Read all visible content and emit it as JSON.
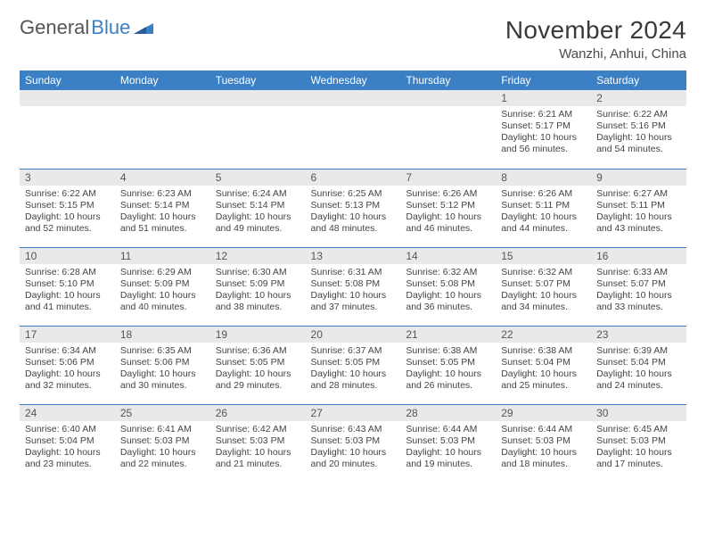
{
  "logo": {
    "text_gray": "General",
    "text_blue": "Blue"
  },
  "title": "November 2024",
  "location": "Wanzhi, Anhui, China",
  "colors": {
    "header_bg": "#3b7fc4",
    "header_text": "#ffffff",
    "daynum_bg": "#e9e9e9",
    "row_divider": "#3b7fc4",
    "body_text": "#444444"
  },
  "day_labels": [
    "Sunday",
    "Monday",
    "Tuesday",
    "Wednesday",
    "Thursday",
    "Friday",
    "Saturday"
  ],
  "weeks": [
    [
      {
        "n": "",
        "sr": "",
        "ss": "",
        "dl": ""
      },
      {
        "n": "",
        "sr": "",
        "ss": "",
        "dl": ""
      },
      {
        "n": "",
        "sr": "",
        "ss": "",
        "dl": ""
      },
      {
        "n": "",
        "sr": "",
        "ss": "",
        "dl": ""
      },
      {
        "n": "",
        "sr": "",
        "ss": "",
        "dl": ""
      },
      {
        "n": "1",
        "sr": "Sunrise: 6:21 AM",
        "ss": "Sunset: 5:17 PM",
        "dl": "Daylight: 10 hours and 56 minutes."
      },
      {
        "n": "2",
        "sr": "Sunrise: 6:22 AM",
        "ss": "Sunset: 5:16 PM",
        "dl": "Daylight: 10 hours and 54 minutes."
      }
    ],
    [
      {
        "n": "3",
        "sr": "Sunrise: 6:22 AM",
        "ss": "Sunset: 5:15 PM",
        "dl": "Daylight: 10 hours and 52 minutes."
      },
      {
        "n": "4",
        "sr": "Sunrise: 6:23 AM",
        "ss": "Sunset: 5:14 PM",
        "dl": "Daylight: 10 hours and 51 minutes."
      },
      {
        "n": "5",
        "sr": "Sunrise: 6:24 AM",
        "ss": "Sunset: 5:14 PM",
        "dl": "Daylight: 10 hours and 49 minutes."
      },
      {
        "n": "6",
        "sr": "Sunrise: 6:25 AM",
        "ss": "Sunset: 5:13 PM",
        "dl": "Daylight: 10 hours and 48 minutes."
      },
      {
        "n": "7",
        "sr": "Sunrise: 6:26 AM",
        "ss": "Sunset: 5:12 PM",
        "dl": "Daylight: 10 hours and 46 minutes."
      },
      {
        "n": "8",
        "sr": "Sunrise: 6:26 AM",
        "ss": "Sunset: 5:11 PM",
        "dl": "Daylight: 10 hours and 44 minutes."
      },
      {
        "n": "9",
        "sr": "Sunrise: 6:27 AM",
        "ss": "Sunset: 5:11 PM",
        "dl": "Daylight: 10 hours and 43 minutes."
      }
    ],
    [
      {
        "n": "10",
        "sr": "Sunrise: 6:28 AM",
        "ss": "Sunset: 5:10 PM",
        "dl": "Daylight: 10 hours and 41 minutes."
      },
      {
        "n": "11",
        "sr": "Sunrise: 6:29 AM",
        "ss": "Sunset: 5:09 PM",
        "dl": "Daylight: 10 hours and 40 minutes."
      },
      {
        "n": "12",
        "sr": "Sunrise: 6:30 AM",
        "ss": "Sunset: 5:09 PM",
        "dl": "Daylight: 10 hours and 38 minutes."
      },
      {
        "n": "13",
        "sr": "Sunrise: 6:31 AM",
        "ss": "Sunset: 5:08 PM",
        "dl": "Daylight: 10 hours and 37 minutes."
      },
      {
        "n": "14",
        "sr": "Sunrise: 6:32 AM",
        "ss": "Sunset: 5:08 PM",
        "dl": "Daylight: 10 hours and 36 minutes."
      },
      {
        "n": "15",
        "sr": "Sunrise: 6:32 AM",
        "ss": "Sunset: 5:07 PM",
        "dl": "Daylight: 10 hours and 34 minutes."
      },
      {
        "n": "16",
        "sr": "Sunrise: 6:33 AM",
        "ss": "Sunset: 5:07 PM",
        "dl": "Daylight: 10 hours and 33 minutes."
      }
    ],
    [
      {
        "n": "17",
        "sr": "Sunrise: 6:34 AM",
        "ss": "Sunset: 5:06 PM",
        "dl": "Daylight: 10 hours and 32 minutes."
      },
      {
        "n": "18",
        "sr": "Sunrise: 6:35 AM",
        "ss": "Sunset: 5:06 PM",
        "dl": "Daylight: 10 hours and 30 minutes."
      },
      {
        "n": "19",
        "sr": "Sunrise: 6:36 AM",
        "ss": "Sunset: 5:05 PM",
        "dl": "Daylight: 10 hours and 29 minutes."
      },
      {
        "n": "20",
        "sr": "Sunrise: 6:37 AM",
        "ss": "Sunset: 5:05 PM",
        "dl": "Daylight: 10 hours and 28 minutes."
      },
      {
        "n": "21",
        "sr": "Sunrise: 6:38 AM",
        "ss": "Sunset: 5:05 PM",
        "dl": "Daylight: 10 hours and 26 minutes."
      },
      {
        "n": "22",
        "sr": "Sunrise: 6:38 AM",
        "ss": "Sunset: 5:04 PM",
        "dl": "Daylight: 10 hours and 25 minutes."
      },
      {
        "n": "23",
        "sr": "Sunrise: 6:39 AM",
        "ss": "Sunset: 5:04 PM",
        "dl": "Daylight: 10 hours and 24 minutes."
      }
    ],
    [
      {
        "n": "24",
        "sr": "Sunrise: 6:40 AM",
        "ss": "Sunset: 5:04 PM",
        "dl": "Daylight: 10 hours and 23 minutes."
      },
      {
        "n": "25",
        "sr": "Sunrise: 6:41 AM",
        "ss": "Sunset: 5:03 PM",
        "dl": "Daylight: 10 hours and 22 minutes."
      },
      {
        "n": "26",
        "sr": "Sunrise: 6:42 AM",
        "ss": "Sunset: 5:03 PM",
        "dl": "Daylight: 10 hours and 21 minutes."
      },
      {
        "n": "27",
        "sr": "Sunrise: 6:43 AM",
        "ss": "Sunset: 5:03 PM",
        "dl": "Daylight: 10 hours and 20 minutes."
      },
      {
        "n": "28",
        "sr": "Sunrise: 6:44 AM",
        "ss": "Sunset: 5:03 PM",
        "dl": "Daylight: 10 hours and 19 minutes."
      },
      {
        "n": "29",
        "sr": "Sunrise: 6:44 AM",
        "ss": "Sunset: 5:03 PM",
        "dl": "Daylight: 10 hours and 18 minutes."
      },
      {
        "n": "30",
        "sr": "Sunrise: 6:45 AM",
        "ss": "Sunset: 5:03 PM",
        "dl": "Daylight: 10 hours and 17 minutes."
      }
    ]
  ]
}
